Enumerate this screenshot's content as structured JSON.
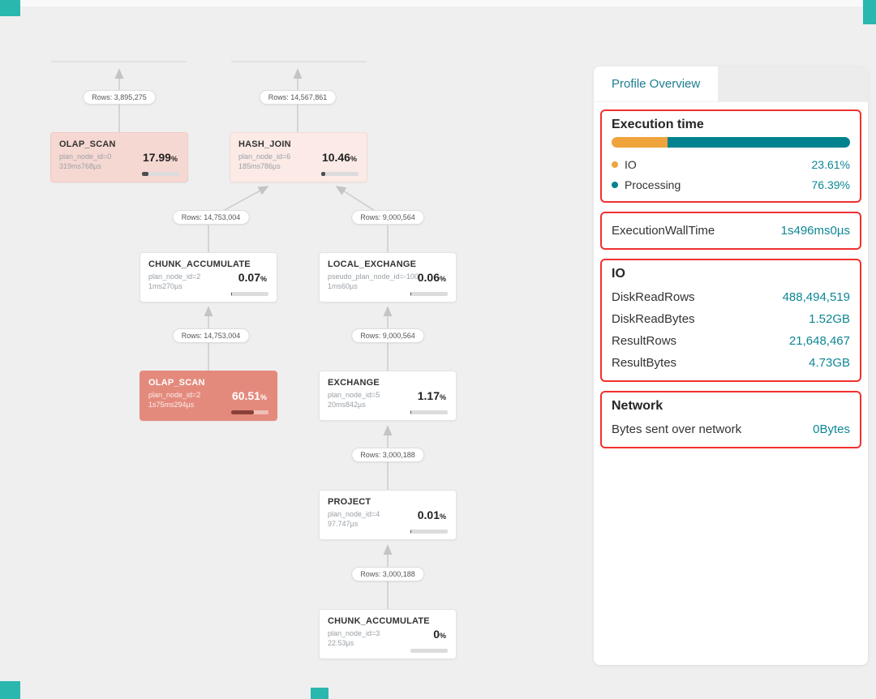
{
  "graph": {
    "pct_unit": "%",
    "badges": [
      {
        "label": "Rows: 3,895,275"
      },
      {
        "label": "Rows: 14,567,861"
      },
      {
        "label": "Rows: 14,753,004"
      },
      {
        "label": "Rows: 9,000,564"
      },
      {
        "label": "Rows: 14,753,004"
      },
      {
        "label": "Rows: 9,000,564"
      },
      {
        "label": "Rows: 3,000,188"
      },
      {
        "label": "Rows: 3,000,188"
      }
    ],
    "nodes": [
      {
        "title": "OLAP_SCAN",
        "id_line": "plan_node_id=0",
        "time": "319ms768µs",
        "pct": "17.99",
        "bar_pct": 18
      },
      {
        "title": "HASH_JOIN",
        "id_line": "plan_node_id=6",
        "time": "185ms786µs",
        "pct": "10.46",
        "bar_pct": 10
      },
      {
        "title": "CHUNK_ACCUMULATE",
        "id_line": "plan_node_id=2",
        "time": "1ms270µs",
        "pct": "0.07",
        "bar_pct": 1
      },
      {
        "title": "LOCAL_EXCHANGE",
        "id_line": "pseudo_plan_node_id=-100",
        "time": "1ms60µs",
        "pct": "0.06",
        "bar_pct": 1
      },
      {
        "title": "OLAP_SCAN",
        "id_line": "plan_node_id=2",
        "time": "1s75ms294µs",
        "pct": "60.51",
        "bar_pct": 60
      },
      {
        "title": "EXCHANGE",
        "id_line": "plan_node_id=5",
        "time": "20ms842µs",
        "pct": "1.17",
        "bar_pct": 2
      },
      {
        "title": "PROJECT",
        "id_line": "plan_node_id=4",
        "time": "97.747µs",
        "pct": "0.01",
        "bar_pct": 1
      },
      {
        "title": "CHUNK_ACCUMULATE",
        "id_line": "plan_node_id=3",
        "time": "22.53µs",
        "pct": "0",
        "bar_pct": 0
      }
    ]
  },
  "panel": {
    "tab_label": "Profile Overview",
    "execution_time": {
      "title": "Execution time",
      "io_pct": 23.61,
      "processing_pct": 76.39,
      "bar_colors": {
        "io": "#f0a43c",
        "processing": "#00838f"
      },
      "legend": [
        {
          "label": "IO",
          "value": "23.61%"
        },
        {
          "label": "Processing",
          "value": "76.39%"
        }
      ]
    },
    "wall_time": {
      "label": "ExecutionWallTime",
      "value": "1s496ms0µs"
    },
    "io": {
      "title": "IO",
      "rows": [
        {
          "label": "DiskReadRows",
          "value": "488,494,519"
        },
        {
          "label": "DiskReadBytes",
          "value": "1.52GB"
        },
        {
          "label": "ResultRows",
          "value": "21,648,467"
        },
        {
          "label": "ResultBytes",
          "value": "4.73GB"
        }
      ]
    },
    "network": {
      "title": "Network",
      "rows": [
        {
          "label": "Bytes sent over network",
          "value": "0Bytes"
        }
      ]
    },
    "highlight_color": "#f23030",
    "accent_color": "#0d8794",
    "corner_color": "#2ab7ae"
  }
}
